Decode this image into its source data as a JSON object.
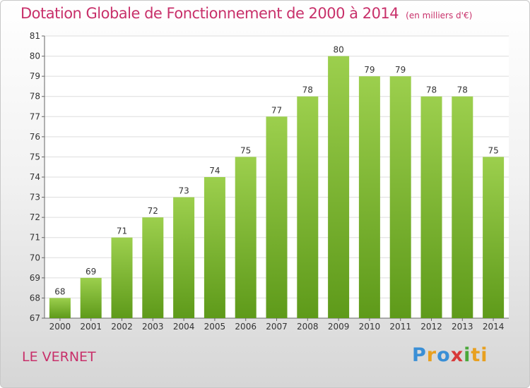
{
  "header": {
    "title": "Dotation Globale de Fonctionnement de 2000 à 2014",
    "unit": "(en milliers d'€)"
  },
  "footer": {
    "place": "LE VERNET",
    "logo_letters": [
      "P",
      "r",
      "o",
      "x",
      "i",
      "ti"
    ]
  },
  "colors": {
    "bar_top": "#9ccf4d",
    "bar_bottom": "#5e9a1a",
    "title": "#c8306a",
    "grid": "#dddddd"
  },
  "chart_data": {
    "type": "bar",
    "title": "Dotation Globale de Fonctionnement de 2000 à 2014",
    "subtitle": "(en milliers d'€)",
    "xlabel": "",
    "ylabel": "",
    "categories": [
      "2000",
      "2001",
      "2002",
      "2003",
      "2004",
      "2005",
      "2006",
      "2007",
      "2008",
      "2009",
      "2010",
      "2011",
      "2012",
      "2013",
      "2014"
    ],
    "values": [
      68,
      69,
      71,
      72,
      73,
      74,
      75,
      77,
      78,
      80,
      79,
      79,
      78,
      78,
      75
    ],
    "data_labels": [
      "68",
      "69",
      "71",
      "72",
      "73",
      "74",
      "75",
      "77",
      "78",
      "80",
      "79",
      "79",
      "78",
      "78",
      "75"
    ],
    "ylim": [
      67,
      81
    ],
    "yticks": [
      67,
      68,
      69,
      70,
      71,
      72,
      73,
      74,
      75,
      76,
      77,
      78,
      79,
      80,
      81
    ],
    "grid": true,
    "legend": "none"
  }
}
